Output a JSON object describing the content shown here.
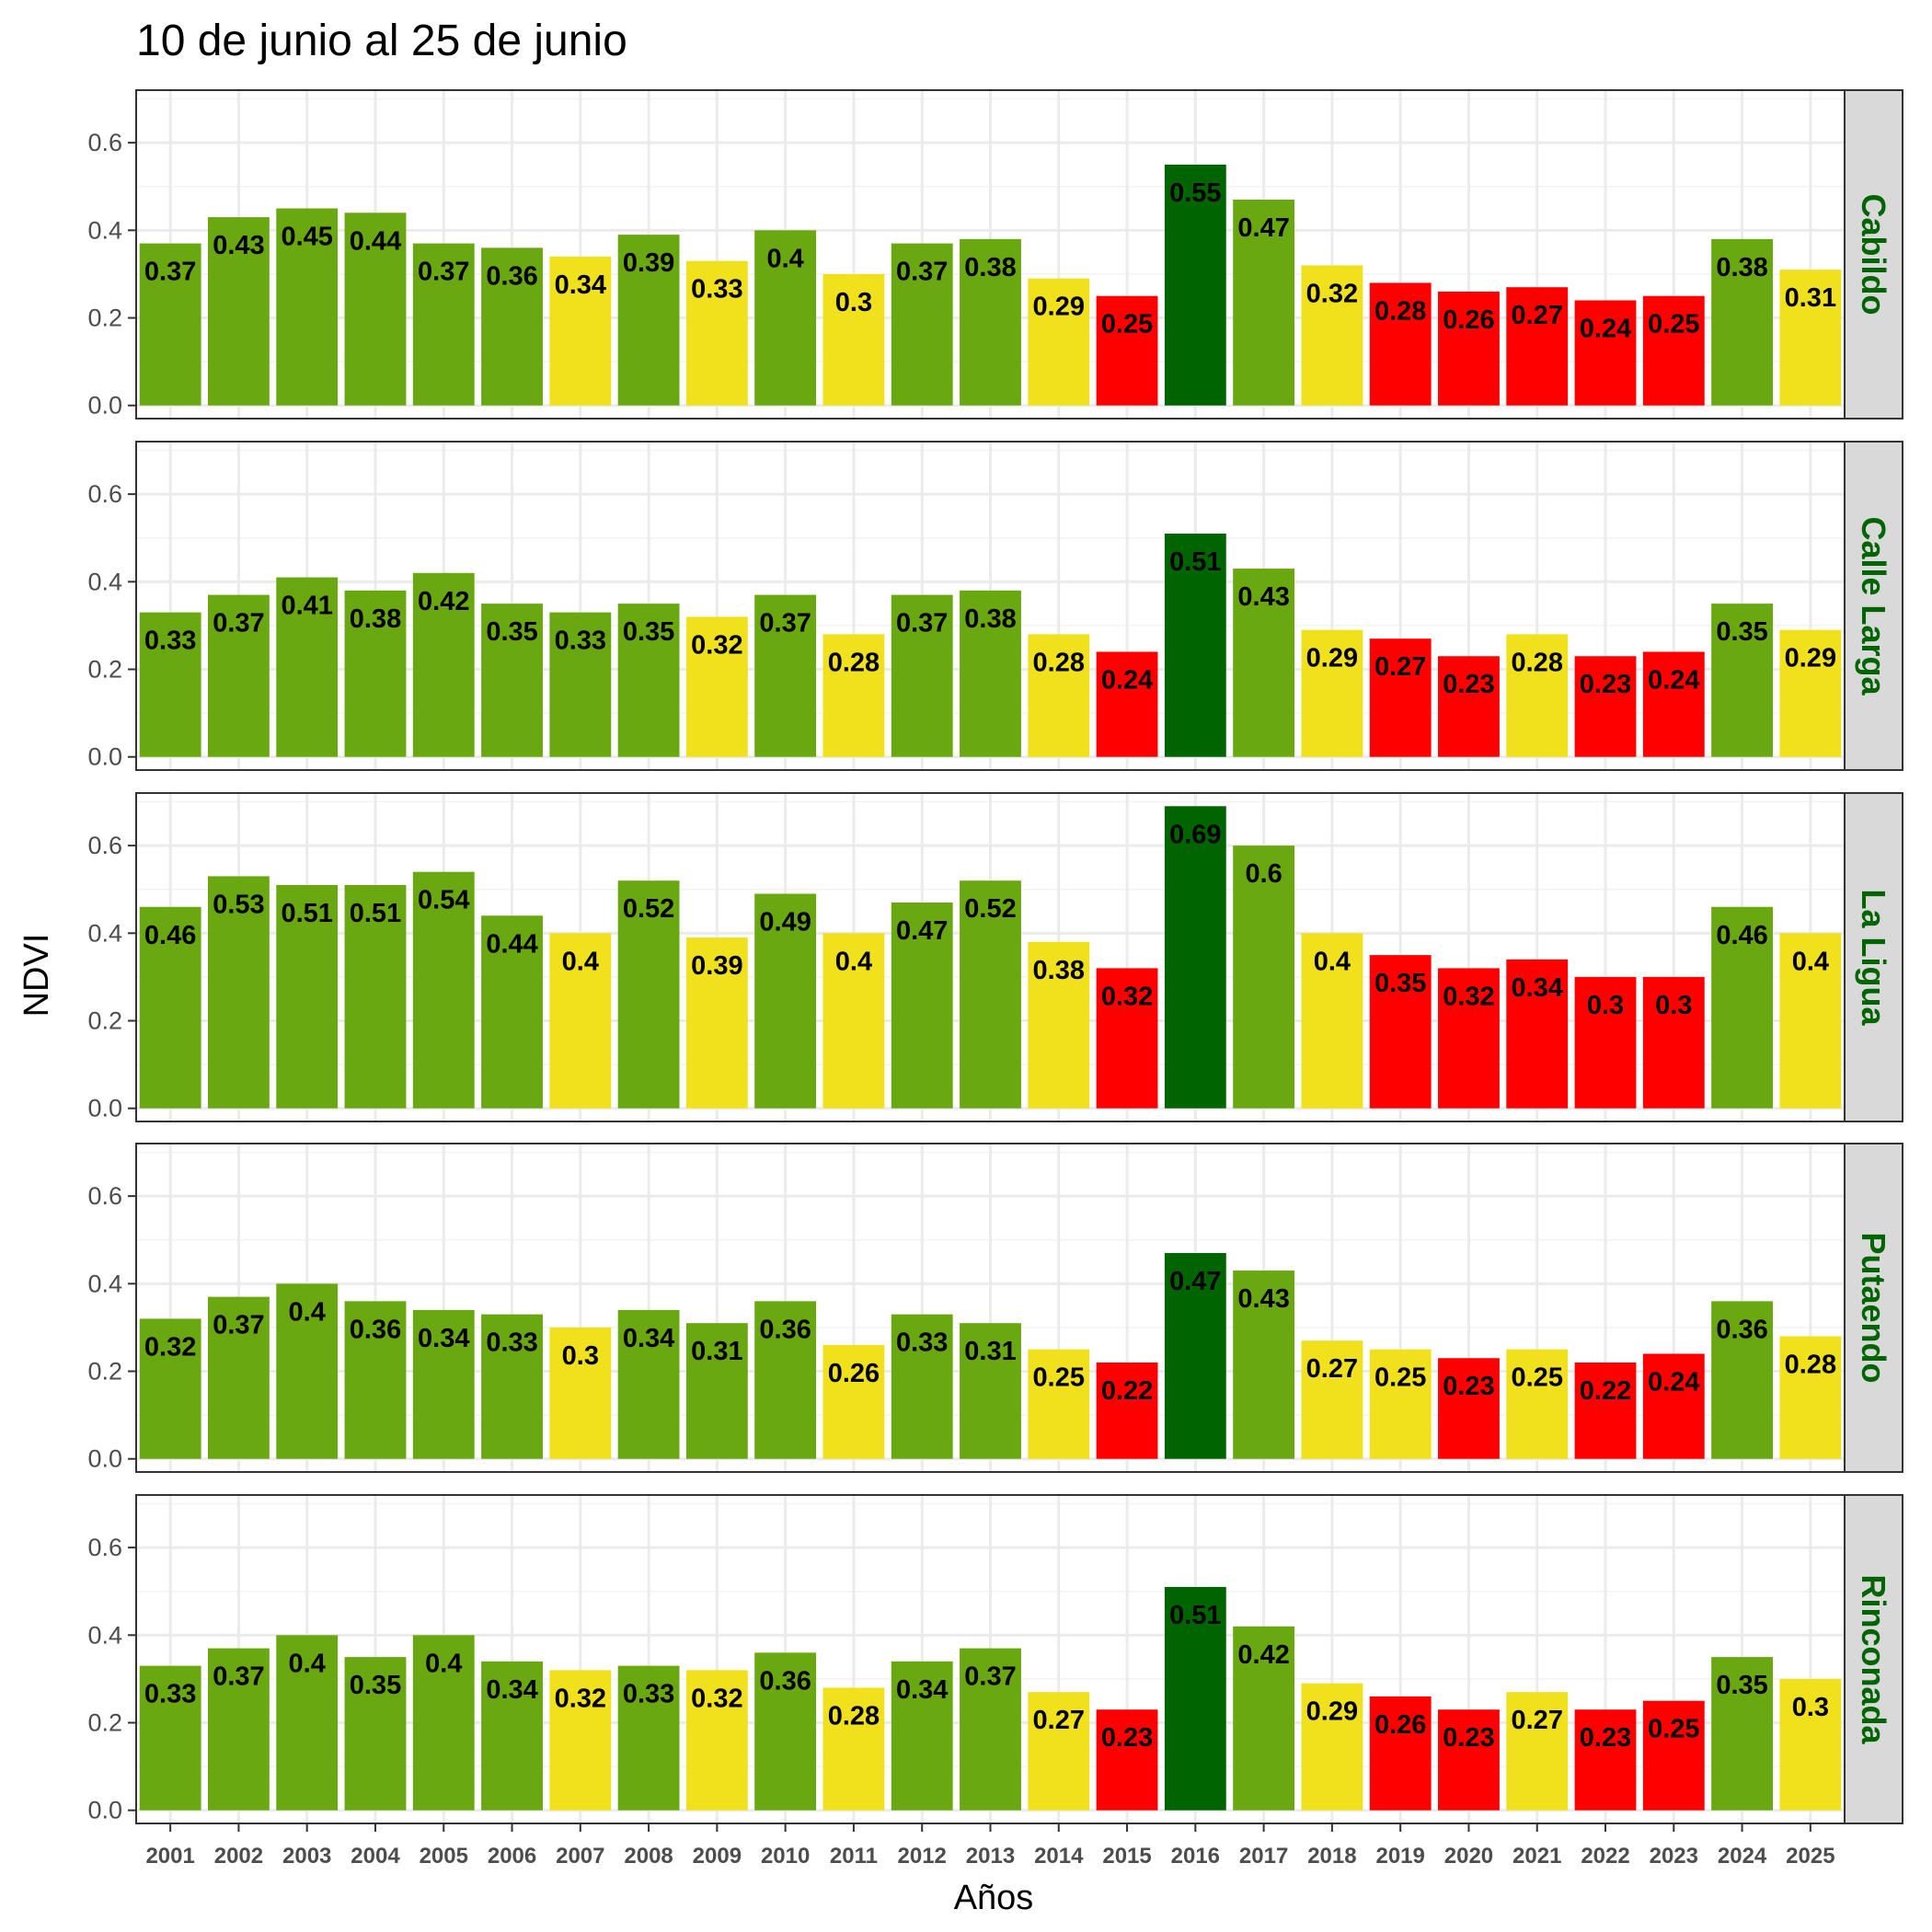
{
  "chart_data": {
    "type": "bar",
    "title": "10 de junio al 25 de junio",
    "xlabel": "Años",
    "ylabel": "NDVI",
    "ylim": [
      -0.03,
      0.72
    ],
    "yticks": [
      "0.0",
      "0.2",
      "0.4",
      "0.6"
    ],
    "grid": true,
    "facet_label_color": "#006400",
    "colors": {
      "dark_green": "#006400",
      "green": "#6aa811",
      "yellow": "#f1e01c",
      "red": "#ff0000"
    },
    "categories": [
      "2001",
      "2002",
      "2003",
      "2004",
      "2005",
      "2006",
      "2007",
      "2008",
      "2009",
      "2010",
      "2011",
      "2012",
      "2013",
      "2014",
      "2015",
      "2016",
      "2017",
      "2018",
      "2019",
      "2020",
      "2021",
      "2022",
      "2023",
      "2024",
      "2025"
    ],
    "facets": [
      {
        "name": "Cabildo",
        "values": [
          0.37,
          0.43,
          0.45,
          0.44,
          0.37,
          0.36,
          0.34,
          0.39,
          0.33,
          0.4,
          0.3,
          0.37,
          0.38,
          0.29,
          0.25,
          0.55,
          0.47,
          0.32,
          0.28,
          0.26,
          0.27,
          0.24,
          0.25,
          0.38,
          0.31
        ],
        "labels": [
          "0.37",
          "0.43",
          "0.45",
          "0.44",
          "0.37",
          "0.36",
          "0.34",
          "0.39",
          "0.33",
          "0.4",
          "0.3",
          "0.37",
          "0.38",
          "0.29",
          "0.25",
          "0.55",
          "0.47",
          "0.32",
          "0.28",
          "0.26",
          "0.27",
          "0.24",
          "0.25",
          "0.38",
          "0.31"
        ],
        "colors": [
          "green",
          "green",
          "green",
          "green",
          "green",
          "green",
          "yellow",
          "green",
          "yellow",
          "green",
          "yellow",
          "green",
          "green",
          "yellow",
          "red",
          "dark_green",
          "green",
          "yellow",
          "red",
          "red",
          "red",
          "red",
          "red",
          "green",
          "yellow"
        ]
      },
      {
        "name": "Calle Larga",
        "values": [
          0.33,
          0.37,
          0.41,
          0.38,
          0.42,
          0.35,
          0.33,
          0.35,
          0.32,
          0.37,
          0.28,
          0.37,
          0.38,
          0.28,
          0.24,
          0.51,
          0.43,
          0.29,
          0.27,
          0.23,
          0.28,
          0.23,
          0.24,
          0.35,
          0.29
        ],
        "labels": [
          "0.33",
          "0.37",
          "0.41",
          "0.38",
          "0.42",
          "0.35",
          "0.33",
          "0.35",
          "0.32",
          "0.37",
          "0.28",
          "0.37",
          "0.38",
          "0.28",
          "0.24",
          "0.51",
          "0.43",
          "0.29",
          "0.27",
          "0.23",
          "0.28",
          "0.23",
          "0.24",
          "0.35",
          "0.29"
        ],
        "colors": [
          "green",
          "green",
          "green",
          "green",
          "green",
          "green",
          "green",
          "green",
          "yellow",
          "green",
          "yellow",
          "green",
          "green",
          "yellow",
          "red",
          "dark_green",
          "green",
          "yellow",
          "red",
          "red",
          "yellow",
          "red",
          "red",
          "green",
          "yellow"
        ]
      },
      {
        "name": "La Ligua",
        "values": [
          0.46,
          0.53,
          0.51,
          0.51,
          0.54,
          0.44,
          0.4,
          0.52,
          0.39,
          0.49,
          0.4,
          0.47,
          0.52,
          0.38,
          0.32,
          0.69,
          0.6,
          0.4,
          0.35,
          0.32,
          0.34,
          0.3,
          0.3,
          0.46,
          0.4
        ],
        "labels": [
          "0.46",
          "0.53",
          "0.51",
          "0.51",
          "0.54",
          "0.44",
          "0.4",
          "0.52",
          "0.39",
          "0.49",
          "0.4",
          "0.47",
          "0.52",
          "0.38",
          "0.32",
          "0.69",
          "0.6",
          "0.4",
          "0.35",
          "0.32",
          "0.34",
          "0.3",
          "0.3",
          "0.46",
          "0.4"
        ],
        "colors": [
          "green",
          "green",
          "green",
          "green",
          "green",
          "green",
          "yellow",
          "green",
          "yellow",
          "green",
          "yellow",
          "green",
          "green",
          "yellow",
          "red",
          "dark_green",
          "green",
          "yellow",
          "red",
          "red",
          "red",
          "red",
          "red",
          "green",
          "yellow"
        ]
      },
      {
        "name": "Putaendo",
        "values": [
          0.32,
          0.37,
          0.4,
          0.36,
          0.34,
          0.33,
          0.3,
          0.34,
          0.31,
          0.36,
          0.26,
          0.33,
          0.31,
          0.25,
          0.22,
          0.47,
          0.43,
          0.27,
          0.25,
          0.23,
          0.25,
          0.22,
          0.24,
          0.36,
          0.28
        ],
        "labels": [
          "0.32",
          "0.37",
          "0.4",
          "0.36",
          "0.34",
          "0.33",
          "0.3",
          "0.34",
          "0.31",
          "0.36",
          "0.26",
          "0.33",
          "0.31",
          "0.25",
          "0.22",
          "0.47",
          "0.43",
          "0.27",
          "0.25",
          "0.23",
          "0.25",
          "0.22",
          "0.24",
          "0.36",
          "0.28"
        ],
        "colors": [
          "green",
          "green",
          "green",
          "green",
          "green",
          "green",
          "yellow",
          "green",
          "green",
          "green",
          "yellow",
          "green",
          "green",
          "yellow",
          "red",
          "dark_green",
          "green",
          "yellow",
          "yellow",
          "red",
          "yellow",
          "red",
          "red",
          "green",
          "yellow"
        ]
      },
      {
        "name": "Rinconada",
        "values": [
          0.33,
          0.37,
          0.4,
          0.35,
          0.4,
          0.34,
          0.32,
          0.33,
          0.32,
          0.36,
          0.28,
          0.34,
          0.37,
          0.27,
          0.23,
          0.51,
          0.42,
          0.29,
          0.26,
          0.23,
          0.27,
          0.23,
          0.25,
          0.35,
          0.3
        ],
        "labels": [
          "0.33",
          "0.37",
          "0.4",
          "0.35",
          "0.4",
          "0.34",
          "0.32",
          "0.33",
          "0.32",
          "0.36",
          "0.28",
          "0.34",
          "0.37",
          "0.27",
          "0.23",
          "0.51",
          "0.42",
          "0.29",
          "0.26",
          "0.23",
          "0.27",
          "0.23",
          "0.25",
          "0.35",
          "0.3"
        ],
        "colors": [
          "green",
          "green",
          "green",
          "green",
          "green",
          "green",
          "yellow",
          "green",
          "yellow",
          "green",
          "yellow",
          "green",
          "green",
          "yellow",
          "red",
          "dark_green",
          "green",
          "yellow",
          "red",
          "red",
          "yellow",
          "red",
          "red",
          "green",
          "yellow"
        ]
      }
    ]
  }
}
